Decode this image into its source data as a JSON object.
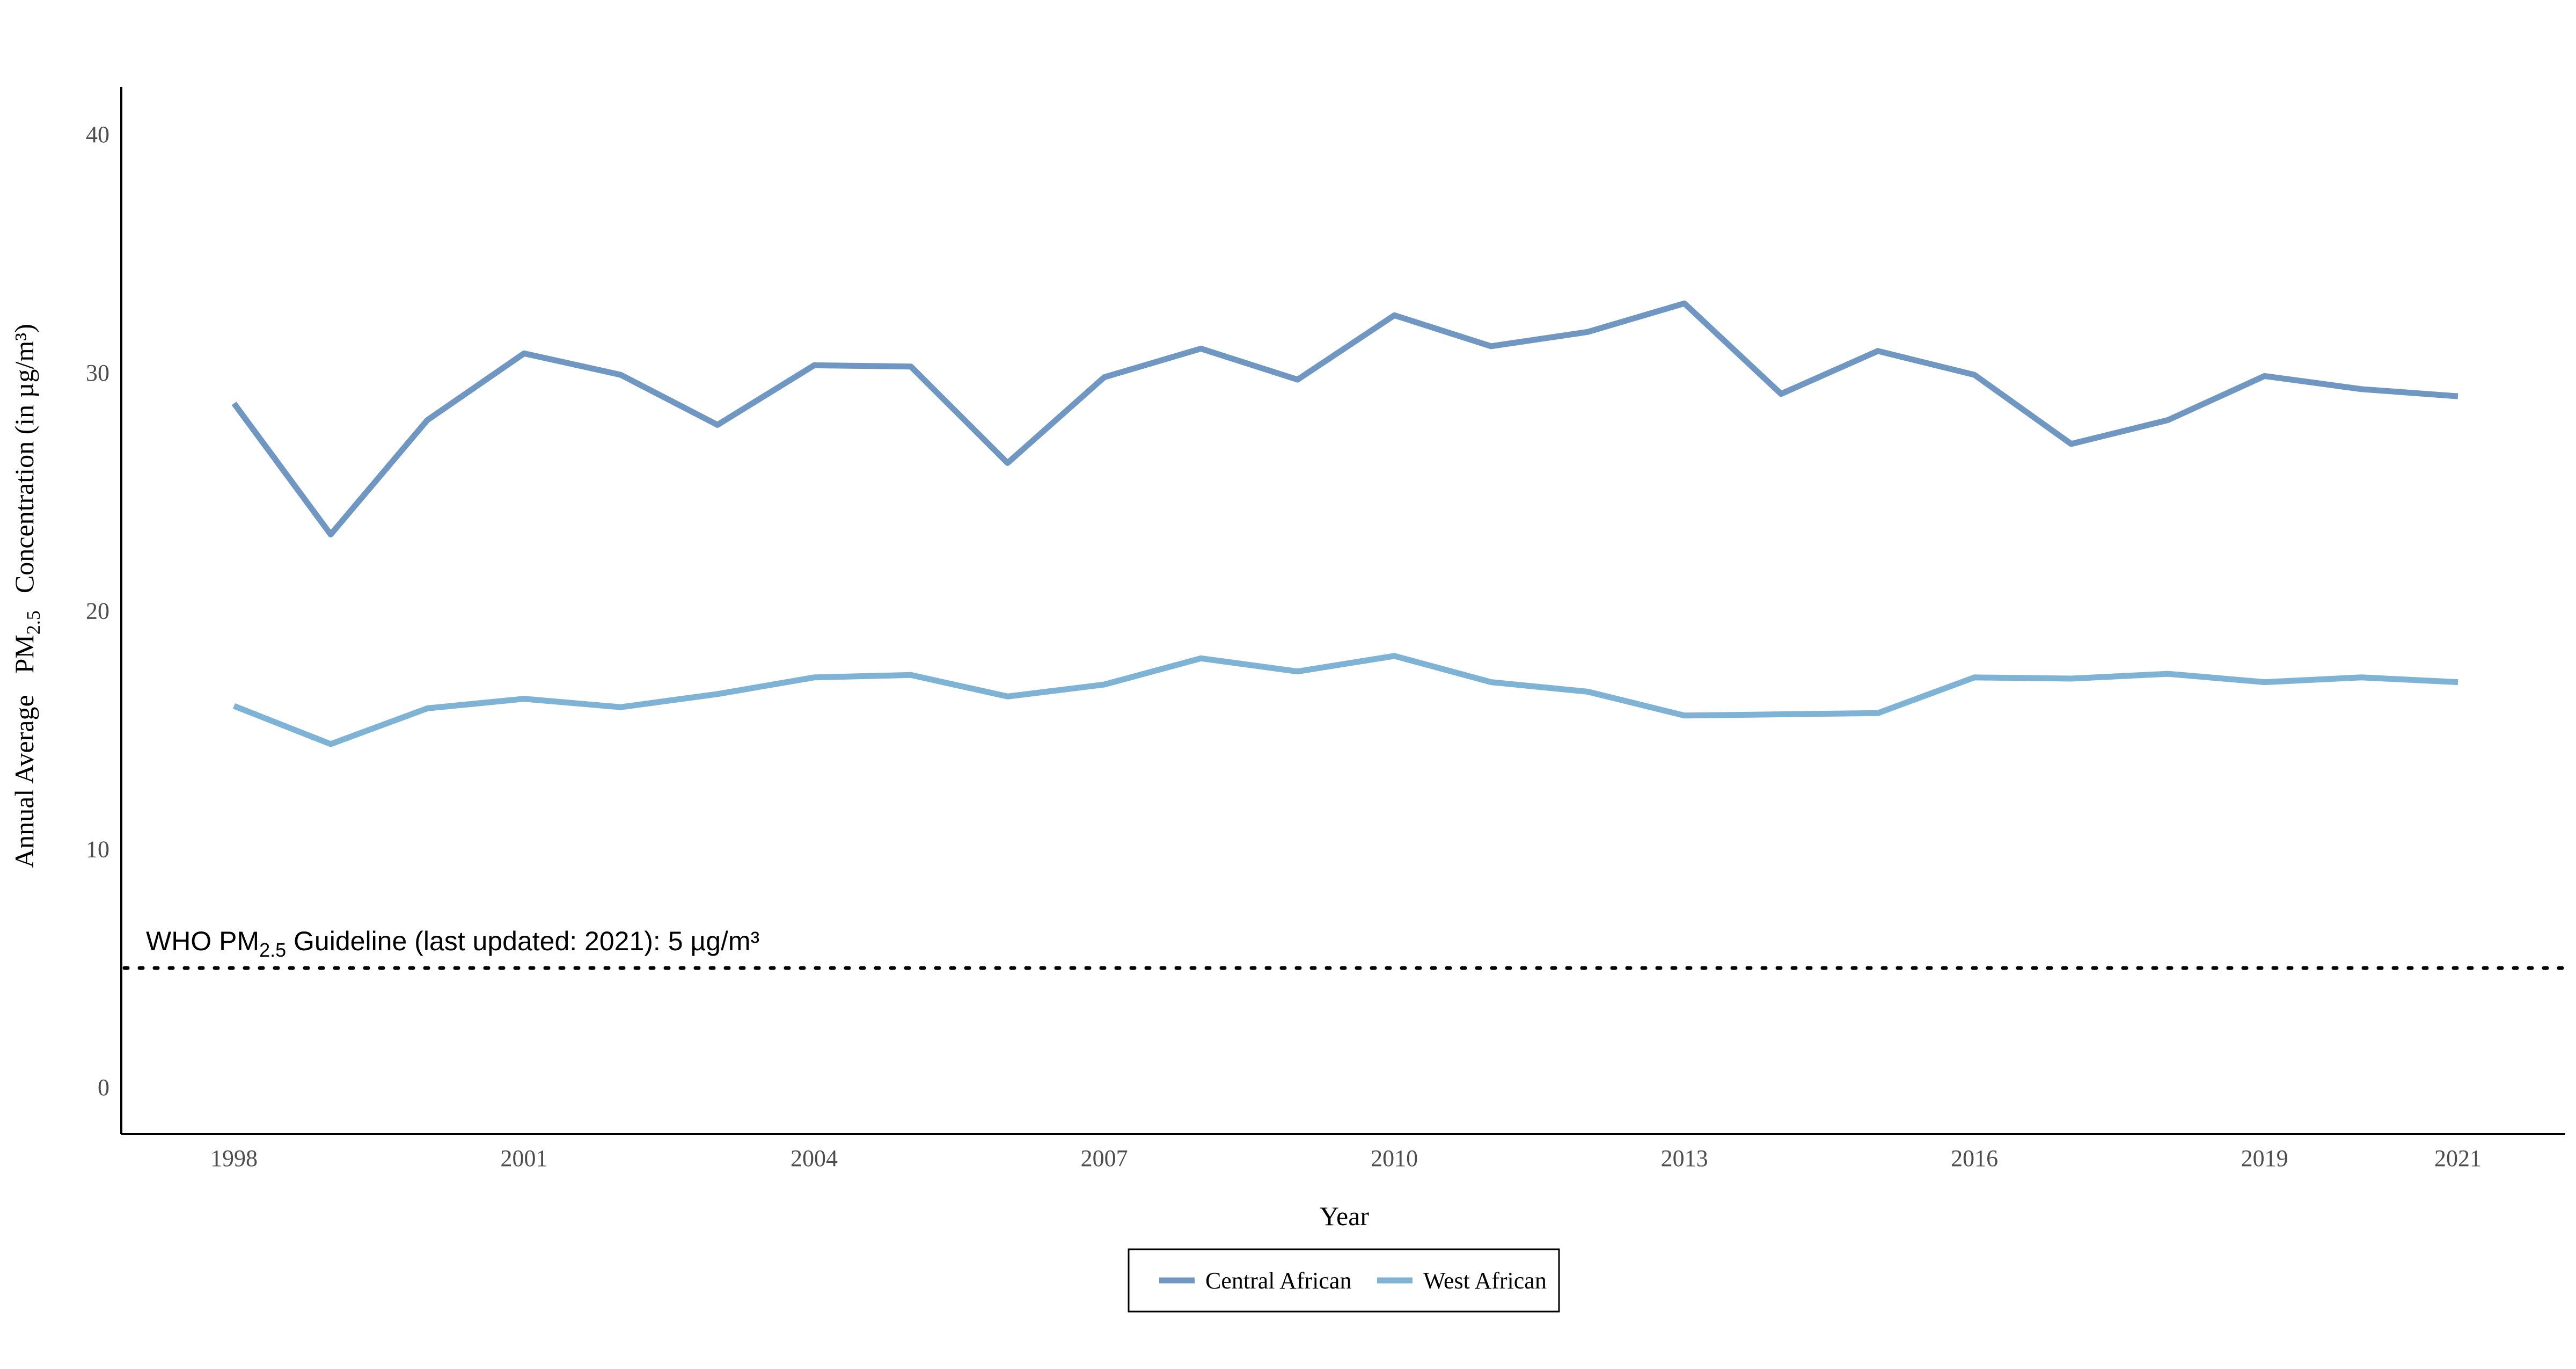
{
  "chart_data": {
    "type": "line",
    "title": "",
    "xlabel": "Year",
    "ylabel": {
      "prefix": "Annual Average",
      "pm": "PM",
      "pm_sub": "2.5",
      "suffix": "Concentration (in µg/m³)"
    },
    "x": [
      1998,
      1999,
      2000,
      2001,
      2002,
      2003,
      2004,
      2005,
      2006,
      2007,
      2008,
      2009,
      2010,
      2011,
      2012,
      2013,
      2014,
      2015,
      2016,
      2017,
      2018,
      2019,
      2020,
      2021
    ],
    "x_ticks": [
      "1998",
      "2001",
      "2004",
      "2007",
      "2010",
      "2013",
      "2016",
      "2019",
      "2021"
    ],
    "y_ticks": [
      "0",
      "10",
      "20",
      "30",
      "40"
    ],
    "ylim": [
      0,
      40
    ],
    "series": [
      {
        "name": "Central African",
        "color": "#6f97c2",
        "values": [
          28.7,
          23.2,
          28.0,
          30.8,
          29.9,
          27.8,
          30.3,
          30.25,
          26.2,
          29.8,
          31.0,
          29.7,
          32.4,
          31.1,
          31.7,
          32.9,
          29.1,
          30.9,
          29.9,
          27.0,
          28.0,
          29.85,
          29.3,
          29.0
        ]
      },
      {
        "name": "West African",
        "color": "#7fb3d5",
        "values": [
          16.0,
          14.4,
          15.9,
          16.3,
          15.95,
          16.5,
          17.2,
          17.3,
          16.4,
          16.9,
          18.0,
          17.45,
          18.1,
          17.0,
          16.6,
          15.6,
          15.65,
          15.7,
          17.2,
          17.15,
          17.35,
          17.0,
          17.2,
          17.0
        ]
      }
    ],
    "reference_line": {
      "value": 5,
      "label_prefix": "WHO PM",
      "label_sub": "2.5",
      "label_suffix": " Guideline (last updated: 2021): 5 µg/m³",
      "style": "dotted"
    },
    "grid": false,
    "legend": "bottom"
  }
}
